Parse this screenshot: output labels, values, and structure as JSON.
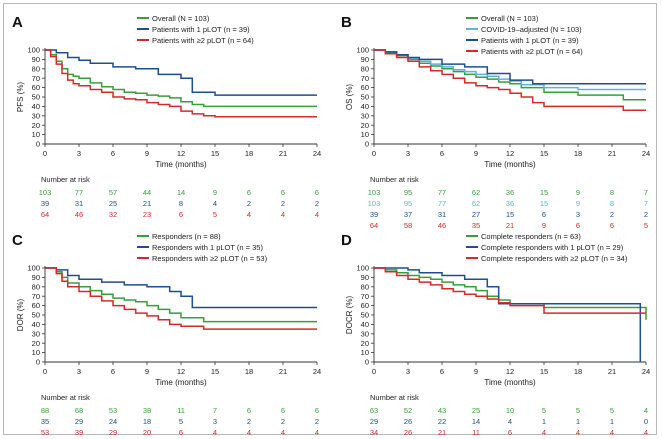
{
  "colors": {
    "overall": "#3a9e3a",
    "one_plot": "#1f4e8c",
    "two_plot": "#d42a2a",
    "covid": "#5ab4dc",
    "axis": "#333333",
    "text": "#222222"
  },
  "chart_data": [
    {
      "id": "A",
      "type": "line",
      "step": true,
      "panel_label": "A",
      "ylabel": "PFS (%)",
      "xlabel": "Time (months)",
      "xlim": [
        0,
        24
      ],
      "ylim": [
        0,
        100
      ],
      "xticks": [
        0,
        3,
        6,
        9,
        12,
        15,
        18,
        21,
        24
      ],
      "yticks": [
        0,
        10,
        20,
        30,
        40,
        50,
        60,
        70,
        80,
        90,
        100
      ],
      "series": [
        {
          "name": "Overall (N = 103)",
          "color": "overall",
          "x": [
            0,
            0.5,
            1,
            1.5,
            2,
            2.5,
            3,
            4,
            5,
            6,
            7,
            8,
            9,
            10,
            11,
            12,
            13,
            14,
            16,
            18,
            21,
            24
          ],
          "y": [
            100,
            95,
            88,
            80,
            74,
            72,
            70,
            65,
            61,
            58,
            55,
            54,
            52,
            51,
            49,
            45,
            42,
            40,
            40,
            40,
            40,
            40
          ]
        },
        {
          "name": "Patients with 1 pLOT (n = 39)",
          "color": "one_plot",
          "x": [
            0,
            1,
            2,
            3,
            4,
            6,
            8,
            10,
            12,
            13,
            15,
            24
          ],
          "y": [
            100,
            97,
            92,
            89,
            86,
            82,
            80,
            74,
            70,
            55,
            52,
            52
          ]
        },
        {
          "name": "Patients with ≥2 pLOT (n = 64)",
          "color": "two_plot",
          "x": [
            0,
            0.5,
            1,
            1.5,
            2,
            2.5,
            3,
            4,
            5,
            6,
            7,
            8,
            9,
            10,
            11,
            12,
            13,
            14,
            15,
            24
          ],
          "y": [
            100,
            93,
            85,
            75,
            68,
            64,
            62,
            58,
            55,
            50,
            48,
            47,
            44,
            42,
            40,
            35,
            32,
            30,
            29,
            29
          ]
        }
      ],
      "risk_title": "Number at risk",
      "risk_times": [
        0,
        3,
        6,
        9,
        12,
        15,
        18,
        21,
        24
      ],
      "risk": [
        {
          "color": "overall",
          "values": [
            "103",
            "77",
            "57",
            "44",
            "14",
            "9",
            "6",
            "6",
            "6"
          ]
        },
        {
          "color": "one_plot",
          "values": [
            "39",
            "31",
            "25",
            "21",
            "8",
            "4",
            "2",
            "2",
            "2"
          ]
        },
        {
          "color": "two_plot",
          "values": [
            "64",
            "46",
            "32",
            "23",
            "6",
            "5",
            "4",
            "4",
            "4"
          ]
        }
      ]
    },
    {
      "id": "B",
      "type": "line",
      "step": true,
      "panel_label": "B",
      "ylabel": "OS (%)",
      "xlabel": "Time (months)",
      "xlim": [
        0,
        24
      ],
      "ylim": [
        0,
        100
      ],
      "xticks": [
        0,
        3,
        6,
        9,
        12,
        15,
        18,
        21,
        24
      ],
      "yticks": [
        0,
        10,
        20,
        30,
        40,
        50,
        60,
        70,
        80,
        90,
        100
      ],
      "series": [
        {
          "name": "Overall (N = 103)",
          "color": "overall",
          "x": [
            0,
            1,
            2,
            3,
            4,
            5,
            6,
            7,
            8,
            9,
            10,
            11,
            12,
            13,
            15,
            18,
            21,
            22,
            24
          ],
          "y": [
            100,
            97,
            94,
            90,
            86,
            83,
            80,
            77,
            74,
            71,
            69,
            66,
            64,
            60,
            55,
            52,
            52,
            47,
            47
          ]
        },
        {
          "name": "COVID-19–adjusted (N = 103)",
          "color": "covid",
          "x": [
            0,
            1,
            2,
            3,
            4,
            5,
            6,
            7,
            8,
            9,
            10,
            11,
            12,
            13,
            15,
            18,
            22,
            24
          ],
          "y": [
            100,
            98,
            95,
            91,
            88,
            85,
            82,
            79,
            77,
            74,
            72,
            69,
            67,
            63,
            60,
            58,
            58,
            58
          ]
        },
        {
          "name": "Patients with 1 pLOT (n = 39)",
          "color": "one_plot",
          "x": [
            0,
            1,
            2,
            3,
            4,
            6,
            8,
            10,
            12,
            14,
            24
          ],
          "y": [
            100,
            98,
            95,
            92,
            90,
            85,
            82,
            75,
            68,
            64,
            64
          ]
        },
        {
          "name": "Patients with ≥2 pLOT (n = 64)",
          "color": "two_plot",
          "x": [
            0,
            1,
            2,
            3,
            4,
            5,
            6,
            7,
            8,
            9,
            10,
            11,
            12,
            13,
            14,
            15,
            18,
            22,
            24
          ],
          "y": [
            100,
            96,
            92,
            88,
            82,
            78,
            74,
            70,
            65,
            62,
            60,
            58,
            54,
            50,
            44,
            40,
            40,
            36,
            36
          ]
        }
      ],
      "risk_title": "Number at risk",
      "risk_times": [
        0,
        3,
        6,
        9,
        12,
        15,
        18,
        21,
        24
      ],
      "risk": [
        {
          "color": "overall",
          "values": [
            "103",
            "95",
            "77",
            "62",
            "36",
            "15",
            "9",
            "8",
            "7"
          ]
        },
        {
          "color": "covid",
          "values": [
            "103",
            "95",
            "77",
            "62",
            "36",
            "15",
            "9",
            "8",
            "7"
          ]
        },
        {
          "color": "one_plot",
          "values": [
            "39",
            "37",
            "31",
            "27",
            "15",
            "6",
            "3",
            "2",
            "2"
          ]
        },
        {
          "color": "two_plot",
          "values": [
            "64",
            "58",
            "46",
            "35",
            "21",
            "9",
            "6",
            "6",
            "5"
          ]
        }
      ]
    },
    {
      "id": "C",
      "type": "line",
      "step": true,
      "panel_label": "C",
      "ylabel": "DOR (%)",
      "xlabel": "Time (months)",
      "xlim": [
        0,
        24
      ],
      "ylim": [
        0,
        100
      ],
      "xticks": [
        0,
        3,
        6,
        9,
        12,
        15,
        18,
        21,
        24
      ],
      "yticks": [
        0,
        10,
        20,
        30,
        40,
        50,
        60,
        70,
        80,
        90,
        100
      ],
      "series": [
        {
          "name": "Responders (n = 88)",
          "color": "overall",
          "x": [
            0,
            1,
            1.5,
            2,
            3,
            4,
            5,
            6,
            7,
            8,
            9,
            10,
            11,
            12,
            14,
            24
          ],
          "y": [
            100,
            96,
            90,
            84,
            80,
            76,
            72,
            68,
            66,
            64,
            60,
            56,
            52,
            47,
            43,
            43
          ]
        },
        {
          "name": "Responders with 1 pLOT (n = 35)",
          "color": "one_plot",
          "x": [
            0,
            1,
            2,
            3,
            5,
            7,
            9,
            11,
            12,
            13,
            24
          ],
          "y": [
            100,
            98,
            92,
            88,
            85,
            82,
            80,
            75,
            70,
            58,
            58
          ]
        },
        {
          "name": "Responders with ≥2 pLOT (n = 53)",
          "color": "two_plot",
          "x": [
            0,
            1,
            1.5,
            2,
            3,
            4,
            5,
            6,
            7,
            8,
            9,
            10,
            11,
            12,
            14,
            24
          ],
          "y": [
            100,
            94,
            86,
            80,
            75,
            70,
            65,
            60,
            56,
            52,
            49,
            45,
            40,
            38,
            35,
            35
          ]
        }
      ],
      "risk_title": "Number at risk",
      "risk_times": [
        0,
        3,
        6,
        9,
        12,
        15,
        18,
        21,
        24
      ],
      "risk": [
        {
          "color": "overall",
          "values": [
            "88",
            "68",
            "53",
            "38",
            "11",
            "7",
            "6",
            "6",
            "6"
          ]
        },
        {
          "color": "one_plot",
          "values": [
            "35",
            "29",
            "24",
            "18",
            "5",
            "3",
            "2",
            "2",
            "2"
          ]
        },
        {
          "color": "two_plot",
          "values": [
            "53",
            "39",
            "29",
            "20",
            "6",
            "4",
            "4",
            "4",
            "4"
          ]
        }
      ]
    },
    {
      "id": "D",
      "type": "line",
      "step": true,
      "panel_label": "D",
      "ylabel": "DOCR (%)",
      "xlabel": "Time (months)",
      "xlim": [
        0,
        24
      ],
      "ylim": [
        0,
        100
      ],
      "xticks": [
        0,
        3,
        6,
        9,
        12,
        15,
        18,
        21,
        24
      ],
      "yticks": [
        0,
        10,
        20,
        30,
        40,
        50,
        60,
        70,
        80,
        90,
        100
      ],
      "series": [
        {
          "name": "Complete responders (n = 63)",
          "color": "overall",
          "x": [
            0,
            1,
            2,
            3,
            4,
            5,
            6,
            7,
            8,
            9,
            10,
            11,
            12,
            15,
            23.5,
            24
          ],
          "y": [
            100,
            98,
            95,
            92,
            90,
            88,
            85,
            82,
            80,
            76,
            70,
            66,
            62,
            58,
            58,
            45
          ]
        },
        {
          "name": "Complete responders with 1 pLOT (n = 29)",
          "color": "one_plot",
          "x": [
            0,
            3,
            4,
            6,
            8,
            10,
            11,
            15,
            23.5
          ],
          "y": [
            100,
            98,
            95,
            92,
            88,
            80,
            62,
            62,
            0
          ]
        },
        {
          "name": "Complete responders with ≥2 pLOT (n = 34)",
          "color": "two_plot",
          "x": [
            0,
            1,
            2,
            3,
            4,
            5,
            6,
            7,
            8,
            9,
            10,
            11,
            12,
            15,
            24
          ],
          "y": [
            100,
            96,
            92,
            88,
            85,
            82,
            78,
            75,
            72,
            70,
            67,
            63,
            60,
            52,
            52
          ]
        }
      ],
      "risk_title": "Number at risk",
      "risk_times": [
        0,
        3,
        6,
        9,
        12,
        15,
        18,
        21,
        24
      ],
      "risk": [
        {
          "color": "overall",
          "values": [
            "63",
            "52",
            "43",
            "25",
            "10",
            "5",
            "5",
            "5",
            "4"
          ]
        },
        {
          "color": "one_plot",
          "values": [
            "29",
            "26",
            "22",
            "14",
            "4",
            "1",
            "1",
            "1",
            "0"
          ]
        },
        {
          "color": "two_plot",
          "values": [
            "34",
            "26",
            "21",
            "11",
            "6",
            "4",
            "4",
            "4",
            "4"
          ]
        }
      ]
    }
  ]
}
